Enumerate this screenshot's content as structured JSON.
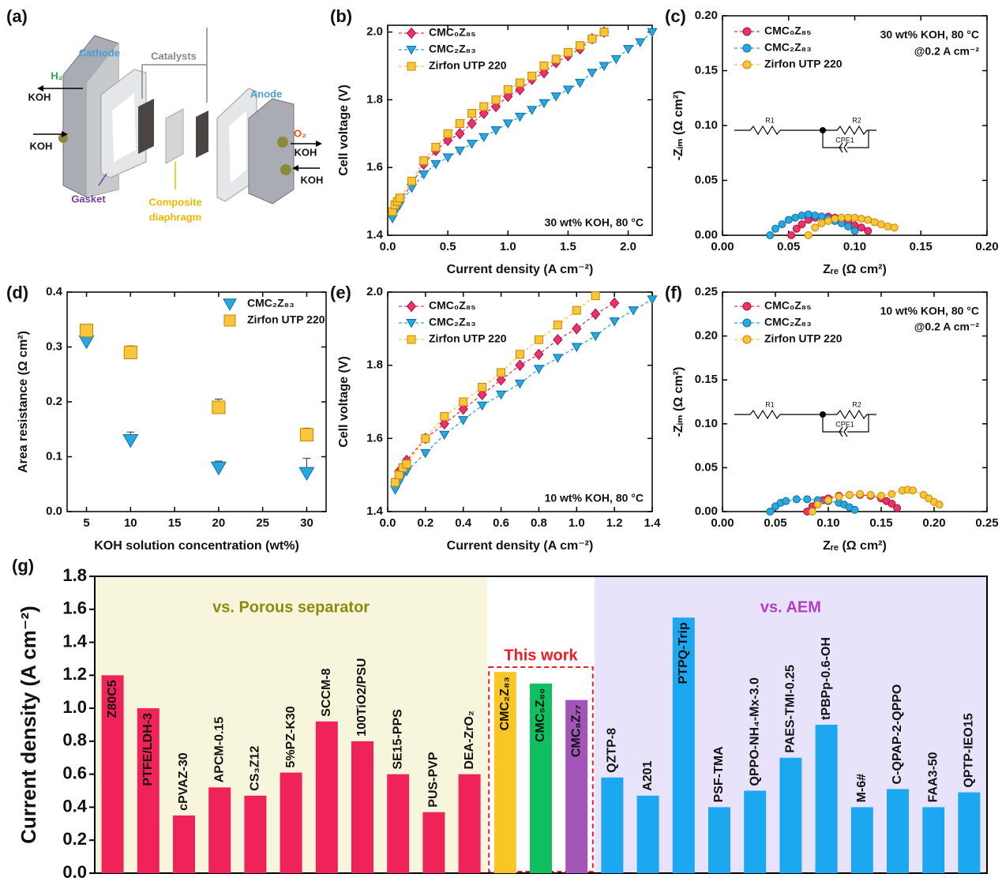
{
  "diagram": {
    "label": "(a)",
    "cathode": "Cathode",
    "catalysts": "Catalysts",
    "anode": "Anode",
    "h2": "H₂",
    "koh_1": "KOH",
    "koh_2": "KOH",
    "o2": "O₂",
    "koh_3": "KOH",
    "koh_4": "KOH",
    "gasket": "Gasket",
    "composite_diaphragm": [
      "Composite",
      "diaphragm"
    ]
  },
  "chart_data": [
    {
      "type": "line",
      "label": "(b)",
      "xlabel": "Current density (A cm⁻²)",
      "ylabel": "Cell voltage (V)",
      "annotations": [
        "30 wt% KOH, 80 °C"
      ],
      "legend": "upper left",
      "xlim": [
        0,
        2.2
      ],
      "xticks": [
        {
          "value": 0,
          "label": "0.0"
        },
        0.5,
        {
          "value": 1,
          "label": "1.0"
        },
        1.5,
        {
          "value": 2,
          "label": "2.0"
        }
      ],
      "ylim": [
        1.4,
        2.02
      ],
      "yticks": [
        1.4,
        1.6,
        1.8,
        {
          "value": 2,
          "label": "2.0"
        }
      ],
      "series": [
        {
          "name": "CMC₀Z₈₅",
          "color": "#e8336b",
          "marker": "diamond",
          "x": [
            0.04,
            0.06,
            0.08,
            0.1,
            0.2,
            0.3,
            0.4,
            0.5,
            0.6,
            0.7,
            0.8,
            0.9,
            1.0,
            1.1,
            1.2,
            1.3,
            1.4,
            1.5,
            1.6,
            1.7,
            1.8
          ],
          "values": [
            1.46,
            1.48,
            1.49,
            1.5,
            1.55,
            1.61,
            1.65,
            1.68,
            1.7,
            1.73,
            1.76,
            1.78,
            1.81,
            1.83,
            1.86,
            1.88,
            1.91,
            1.93,
            1.95,
            1.98,
            2.0
          ]
        },
        {
          "name": "CMC₂Z₈₃",
          "color": "#29a8e0",
          "marker": "triangle-down",
          "x": [
            0.04,
            0.06,
            0.08,
            0.1,
            0.2,
            0.3,
            0.4,
            0.5,
            0.6,
            0.7,
            0.8,
            0.9,
            1.0,
            1.1,
            1.2,
            1.3,
            1.4,
            1.5,
            1.6,
            1.7,
            1.8,
            1.9,
            2.0,
            2.1,
            2.2
          ],
          "values": [
            1.45,
            1.47,
            1.48,
            1.49,
            1.54,
            1.58,
            1.61,
            1.63,
            1.65,
            1.67,
            1.69,
            1.71,
            1.73,
            1.75,
            1.77,
            1.79,
            1.81,
            1.83,
            1.85,
            1.88,
            1.9,
            1.92,
            1.95,
            1.97,
            2.0
          ]
        },
        {
          "name": "Zirfon UTP 220",
          "color": "#f8c63a",
          "marker": "square",
          "x": [
            0.04,
            0.06,
            0.08,
            0.1,
            0.2,
            0.3,
            0.4,
            0.5,
            0.6,
            0.7,
            0.8,
            0.9,
            1.0,
            1.1,
            1.2,
            1.3,
            1.4,
            1.5,
            1.6,
            1.7,
            1.8
          ],
          "values": [
            1.47,
            1.49,
            1.5,
            1.51,
            1.56,
            1.62,
            1.66,
            1.7,
            1.73,
            1.76,
            1.78,
            1.8,
            1.83,
            1.85,
            1.87,
            1.9,
            1.92,
            1.94,
            1.96,
            1.98,
            2.0
          ]
        }
      ]
    },
    {
      "type": "line",
      "label": "(c)",
      "xlabel": "Zᵣₑ (Ω cm²)",
      "ylabel": "-Zᵢₘ (Ω cm²)",
      "annotations": [
        "30 wt% KOH, 80 °C",
        "@0.2 A cm⁻²"
      ],
      "inset_labels": [
        "R1",
        "R2",
        "CPE1"
      ],
      "legend": "upper left",
      "xlim": [
        0,
        0.2
      ],
      "xticks": [
        {
          "value": 0,
          "label": "0.00"
        },
        0.05,
        {
          "value": 0.1,
          "label": "0.10"
        },
        0.15,
        {
          "value": 0.2,
          "label": "0.20"
        }
      ],
      "ylim": [
        0,
        0.2
      ],
      "yticks": [
        {
          "value": 0,
          "label": "0.00"
        },
        0.05,
        {
          "value": 0.1,
          "label": "0.10"
        },
        0.15,
        {
          "value": 0.2,
          "label": "0.20"
        }
      ],
      "series": [
        {
          "name": "CMC₀Z₈₅",
          "color": "#e8336b",
          "marker": "circle",
          "x": [
            0.052,
            0.056,
            0.06,
            0.065,
            0.07,
            0.075,
            0.08,
            0.085,
            0.09,
            0.095,
            0.1,
            0.105,
            0.11
          ],
          "values": [
            0.0,
            0.006,
            0.01,
            0.014,
            0.016,
            0.017,
            0.017,
            0.016,
            0.014,
            0.012,
            0.009,
            0.007,
            0.004
          ]
        },
        {
          "name": "CMC₂Z₈₃",
          "color": "#29a8e0",
          "marker": "circle",
          "x": [
            0.036,
            0.04,
            0.045,
            0.05,
            0.055,
            0.06,
            0.065,
            0.07,
            0.075,
            0.08,
            0.085,
            0.09,
            0.095,
            0.1
          ],
          "values": [
            0.0,
            0.006,
            0.01,
            0.014,
            0.016,
            0.018,
            0.019,
            0.018,
            0.017,
            0.015,
            0.013,
            0.011,
            0.008,
            0.004
          ]
        },
        {
          "name": "Zirfon UTP 220",
          "color": "#f8c63a",
          "marker": "circle",
          "x": [
            0.065,
            0.07,
            0.075,
            0.08,
            0.085,
            0.09,
            0.095,
            0.1,
            0.105,
            0.11,
            0.115,
            0.12,
            0.125,
            0.13
          ],
          "values": [
            0.0,
            0.007,
            0.011,
            0.013,
            0.015,
            0.016,
            0.016,
            0.016,
            0.015,
            0.014,
            0.012,
            0.01,
            0.008,
            0.007
          ]
        }
      ]
    },
    {
      "type": "scatter",
      "label": "(d)",
      "xlabel": "KOH solution concentration (wt%)",
      "ylabel": "Area resistance (Ω cm²)",
      "legend": "upper right",
      "x": [
        5,
        10,
        20,
        30
      ],
      "xlim": [
        2.8,
        32.2
      ],
      "xticks": [
        5,
        10,
        15,
        20,
        25,
        30
      ],
      "ylim": [
        0,
        0.4
      ],
      "yticks": [
        {
          "value": 0,
          "label": "0.0"
        },
        0.1,
        0.2,
        0.3,
        0.4
      ],
      "series": [
        {
          "name": "CMC₂Z₈₃",
          "color": "#29a8e0",
          "marker": "triangle-down",
          "values": [
            0.31,
            0.13,
            0.08,
            0.07
          ],
          "errors": [
            0.01,
            0.015,
            0.012,
            0.027
          ]
        },
        {
          "name": "Zirfon UTP 220",
          "color": "#f8c63a",
          "marker": "square",
          "values": [
            0.33,
            0.29,
            0.19,
            0.14
          ],
          "errors": [
            0.01,
            0.012,
            0.015,
            0.012
          ]
        }
      ]
    },
    {
      "type": "line",
      "label": "(e)",
      "xlabel": "Current density (A cm⁻²)",
      "ylabel": "Cell voltage (V)",
      "annotations": [
        "10 wt% KOH, 80 °C"
      ],
      "legend": "upper left",
      "xlim": [
        0,
        1.4
      ],
      "xticks": [
        {
          "value": 0,
          "label": "0.0"
        },
        0.2,
        0.4,
        0.6,
        0.8,
        {
          "value": 1,
          "label": "1.0"
        },
        1.2,
        1.4
      ],
      "ylim": [
        1.4,
        2.0
      ],
      "yticks": [
        1.4,
        1.6,
        1.8,
        {
          "value": 2,
          "label": "2.0"
        }
      ],
      "series": [
        {
          "name": "CMC₀Z₈₅",
          "color": "#e8336b",
          "marker": "diamond",
          "x": [
            0.04,
            0.06,
            0.08,
            0.1,
            0.2,
            0.3,
            0.4,
            0.5,
            0.6,
            0.7,
            0.8,
            0.9,
            1.0,
            1.1,
            1.2
          ],
          "values": [
            1.48,
            1.51,
            1.52,
            1.54,
            1.6,
            1.64,
            1.68,
            1.72,
            1.76,
            1.8,
            1.83,
            1.87,
            1.9,
            1.94,
            1.97
          ]
        },
        {
          "name": "CMC₂Z₈₃",
          "color": "#29a8e0",
          "marker": "triangle-down",
          "x": [
            0.04,
            0.06,
            0.08,
            0.1,
            0.2,
            0.3,
            0.4,
            0.5,
            0.6,
            0.7,
            0.8,
            0.9,
            1.0,
            1.1,
            1.2,
            1.3,
            1.4
          ],
          "values": [
            1.46,
            1.48,
            1.5,
            1.51,
            1.56,
            1.61,
            1.65,
            1.69,
            1.72,
            1.75,
            1.79,
            1.82,
            1.85,
            1.88,
            1.92,
            1.95,
            1.98
          ]
        },
        {
          "name": "Zirfon UTP 220",
          "color": "#f8c63a",
          "marker": "square",
          "x": [
            0.04,
            0.06,
            0.08,
            0.1,
            0.2,
            0.3,
            0.4,
            0.5,
            0.6,
            0.7,
            0.8,
            0.9,
            1.0,
            1.1
          ],
          "values": [
            1.48,
            1.5,
            1.52,
            1.53,
            1.6,
            1.66,
            1.7,
            1.74,
            1.78,
            1.83,
            1.87,
            1.91,
            1.95,
            1.99
          ]
        }
      ]
    },
    {
      "type": "line",
      "label": "(f)",
      "xlabel": "Zᵣₑ (Ω cm²)",
      "ylabel": "-Zᵢₘ (Ω cm²)",
      "annotations": [
        "10 wt% KOH, 80 °C",
        "@0.2 A cm⁻²"
      ],
      "inset_labels": [
        "R1",
        "R2",
        "CPE1"
      ],
      "legend": "upper left",
      "xlim": [
        0,
        0.25
      ],
      "xticks": [
        {
          "value": 0,
          "label": "0.00"
        },
        0.05,
        {
          "value": 0.1,
          "label": "0.10"
        },
        0.15,
        {
          "value": 0.2,
          "label": "0.20"
        },
        0.25
      ],
      "ylim": [
        0,
        0.25
      ],
      "yticks": [
        {
          "value": 0,
          "label": "0.00"
        },
        0.05,
        {
          "value": 0.1,
          "label": "0.10"
        },
        0.15,
        {
          "value": 0.2,
          "label": "0.20"
        },
        0.25
      ],
      "series": [
        {
          "name": "CMC₀Z₈₅",
          "color": "#e8336b",
          "marker": "circle",
          "x": [
            0.08,
            0.085,
            0.09,
            0.095,
            0.1,
            0.11,
            0.12,
            0.13,
            0.14,
            0.15,
            0.155,
            0.16,
            0.165
          ],
          "values": [
            0,
            0.006,
            0.01,
            0.013,
            0.015,
            0.018,
            0.019,
            0.019,
            0.018,
            0.015,
            0.012,
            0.009,
            0.004
          ]
        },
        {
          "name": "CMC₂Z₈₃",
          "color": "#29a8e0",
          "marker": "circle",
          "x": [
            0.045,
            0.05,
            0.055,
            0.06,
            0.07,
            0.08,
            0.09,
            0.1,
            0.11,
            0.115,
            0.12,
            0.125
          ],
          "values": [
            0,
            0.006,
            0.01,
            0.012,
            0.014,
            0.014,
            0.013,
            0.012,
            0.01,
            0.008,
            0.005,
            0.002
          ]
        },
        {
          "name": "Zirfon UTP 220",
          "color": "#f8c63a",
          "marker": "circle",
          "x": [
            0.085,
            0.09,
            0.1,
            0.11,
            0.12,
            0.13,
            0.14,
            0.15,
            0.16,
            0.17,
            0.175,
            0.18,
            0.19,
            0.195,
            0.2,
            0.205
          ],
          "values": [
            0,
            0.008,
            0.013,
            0.017,
            0.019,
            0.02,
            0.019,
            0.018,
            0.02,
            0.024,
            0.025,
            0.024,
            0.019,
            0.015,
            0.011,
            0.008
          ]
        }
      ]
    },
    {
      "type": "bar",
      "label": "(g)",
      "ylabel": "Current density (A cm⁻²)",
      "ylim": [
        0,
        1.8
      ],
      "yticks": [
        {
          "value": 0,
          "label": "0.0"
        },
        0.2,
        0.4,
        0.6,
        0.8,
        {
          "value": 1,
          "label": "1.0"
        },
        1.2,
        1.4,
        1.6,
        1.8
      ],
      "groups": [
        {
          "label": "vs. Porous separator",
          "label_color": "#8b8b10",
          "background": "#f7f5dc",
          "colors": "#f0225a",
          "categories": [
            "Z80C5",
            "PTFE/LDH-3",
            "cPVAZ-30",
            "APCM-0.15",
            "CS₃Z12",
            "5%PZ-K30",
            "SCCM-8",
            "100TiO2/PSU",
            "SE15-PPS",
            "PUS-PVP",
            "DEA-ZrO₂"
          ],
          "values": [
            1.2,
            1.0,
            0.35,
            0.52,
            0.47,
            0.61,
            0.92,
            0.8,
            0.6,
            0.37,
            0.6
          ]
        },
        {
          "label": "This work",
          "label_color": "#ee1c24",
          "background": "#ffffff",
          "outline": "#ee1c24",
          "colors": [
            "#f9c623",
            "#10c060",
            "#a455b8"
          ],
          "categories": [
            "CMC₂Z₈₃",
            "CMC₅Z₈₀",
            "CMC₈Z₇₇"
          ],
          "values": [
            1.22,
            1.15,
            1.05
          ]
        },
        {
          "label": "vs. AEM",
          "label_color": "#b33fc0",
          "background": "#e8e3fb",
          "colors": "#1ca8f0",
          "categories": [
            "QZTP-8",
            "A201",
            "PTPQ-Trip",
            "PSF-TMA",
            "QPPO-NH₄-Mx-3.0",
            "PAES-TMI-0.25",
            "tPBPp-0.6-OH",
            "M-6#",
            "C-QPAP-2-QPPO",
            "FAA3-50",
            "QPTP-IEO15"
          ],
          "values": [
            0.58,
            0.47,
            1.55,
            0.4,
            0.5,
            0.7,
            0.9,
            0.4,
            0.51,
            0.4,
            0.49
          ]
        }
      ]
    }
  ]
}
